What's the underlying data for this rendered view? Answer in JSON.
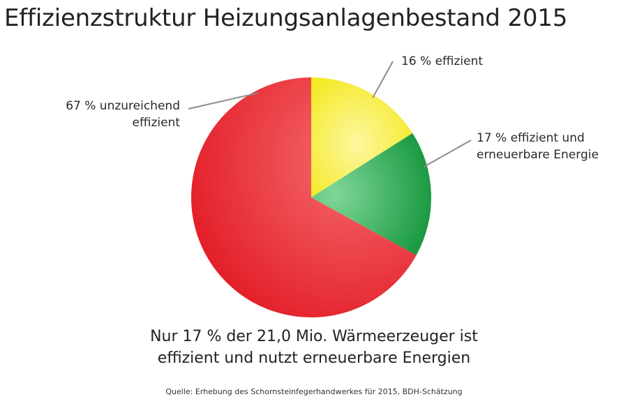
{
  "title": "Effizienzstruktur Heizungsanlagenbestand 2015",
  "summary": {
    "line1": "Nur 17 % der 21,0 Mio. Wärmeerzeuger ist",
    "line2": "effizient und nutzt erneuerbare Energien"
  },
  "source": "Quelle: Erhebung des Schornsteinfegerhandwerkes für 2015, BDH-Schätzung",
  "chart_data": {
    "type": "pie",
    "title": "Effizienzstruktur Heizungsanlagenbestand 2015",
    "slices": [
      {
        "key": "effizient",
        "value": 16,
        "label_lines": [
          "16 % effizient"
        ],
        "color": "#f5ea1c"
      },
      {
        "key": "effizient_ee",
        "value": 17,
        "label_lines": [
          "17 % effizient und",
          "erneuerbare Energie"
        ],
        "color": "#22a84a"
      },
      {
        "key": "unzureichend",
        "value": 67,
        "label_lines": [
          "67 % unzureichend",
          "effizient"
        ],
        "color": "#e4202a"
      }
    ],
    "start": "12 o'clock",
    "direction": "clockwise",
    "legend": "none"
  }
}
